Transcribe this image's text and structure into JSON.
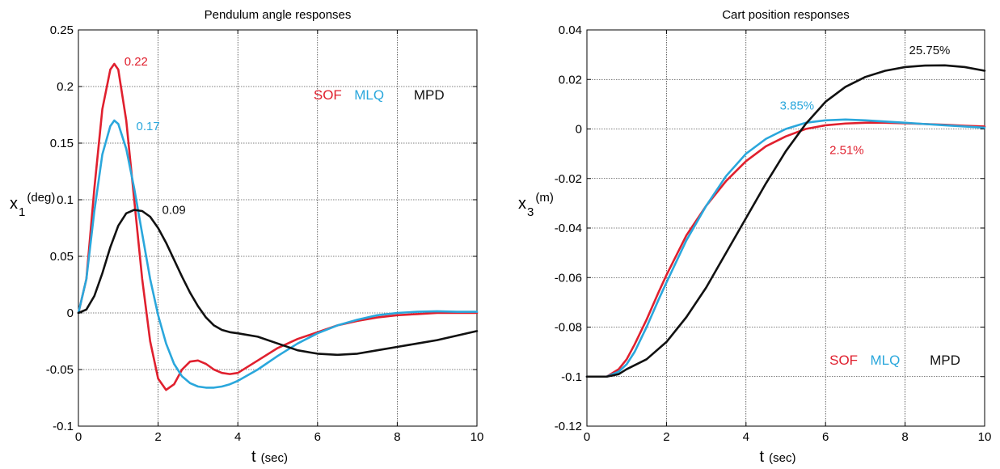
{
  "colors": {
    "SOF": "#e0202e",
    "MLQ": "#2aa7dc",
    "MPD": "#111111"
  },
  "chart_data": [
    {
      "type": "line",
      "title": "Pendulum angle responses",
      "xlabel": "t",
      "xlabel_unit": "(sec)",
      "ylabel": "x",
      "ylabel_sub": "1",
      "ylabel_unit": "(deg)",
      "xlim": [
        0,
        10
      ],
      "ylim": [
        -0.1,
        0.25
      ],
      "xticks": [
        0,
        2,
        4,
        6,
        8,
        10
      ],
      "yticks": [
        -0.1,
        -0.05,
        0,
        0.05,
        0.1,
        0.15,
        0.2,
        0.25
      ],
      "xtick_labels": [
        "0",
        "2",
        "4",
        "6",
        "8",
        "10"
      ],
      "ytick_labels": [
        "-0.1",
        "-0.05",
        "0",
        "0.05",
        "0.1",
        "0.15",
        "0.2",
        "0.25"
      ],
      "grid": true,
      "legend": [
        "SOF",
        "MLQ",
        "MPD"
      ],
      "legend_position": "top-right",
      "series": [
        {
          "name": "SOF",
          "color": "#e0202e",
          "x": [
            0,
            0.2,
            0.4,
            0.6,
            0.8,
            0.9,
            1.0,
            1.2,
            1.4,
            1.6,
            1.8,
            2.0,
            2.2,
            2.4,
            2.6,
            2.8,
            3.0,
            3.2,
            3.4,
            3.6,
            3.8,
            4.0,
            4.5,
            5.0,
            5.5,
            6.0,
            6.5,
            7.0,
            7.5,
            8.0,
            8.5,
            9.0,
            9.5,
            10.0
          ],
          "y": [
            0,
            0.03,
            0.11,
            0.18,
            0.215,
            0.22,
            0.215,
            0.17,
            0.1,
            0.03,
            -0.025,
            -0.058,
            -0.068,
            -0.063,
            -0.05,
            -0.043,
            -0.042,
            -0.045,
            -0.05,
            -0.053,
            -0.054,
            -0.053,
            -0.042,
            -0.031,
            -0.023,
            -0.017,
            -0.011,
            -0.007,
            -0.004,
            -0.002,
            -0.001,
            0.0,
            0.0,
            0.0
          ]
        },
        {
          "name": "MLQ",
          "color": "#2aa7dc",
          "x": [
            0,
            0.2,
            0.4,
            0.6,
            0.8,
            0.9,
            1.0,
            1.2,
            1.4,
            1.6,
            1.8,
            2.0,
            2.2,
            2.4,
            2.6,
            2.8,
            3.0,
            3.2,
            3.4,
            3.6,
            3.8,
            4.0,
            4.5,
            5.0,
            5.5,
            6.0,
            6.5,
            7.0,
            7.5,
            8.0,
            8.5,
            9.0,
            9.5,
            10.0
          ],
          "y": [
            0,
            0.03,
            0.09,
            0.14,
            0.165,
            0.17,
            0.167,
            0.145,
            0.11,
            0.07,
            0.03,
            -0.002,
            -0.027,
            -0.045,
            -0.056,
            -0.062,
            -0.065,
            -0.066,
            -0.066,
            -0.065,
            -0.063,
            -0.06,
            -0.05,
            -0.038,
            -0.027,
            -0.018,
            -0.011,
            -0.006,
            -0.002,
            0.0,
            0.001,
            0.0015,
            0.001,
            0.001
          ]
        },
        {
          "name": "MPD",
          "color": "#111111",
          "x": [
            0,
            0.2,
            0.4,
            0.6,
            0.8,
            1.0,
            1.2,
            1.4,
            1.6,
            1.8,
            2.0,
            2.2,
            2.4,
            2.6,
            2.8,
            3.0,
            3.2,
            3.4,
            3.6,
            3.8,
            4.0,
            4.5,
            5.0,
            5.5,
            6.0,
            6.5,
            7.0,
            7.5,
            8.0,
            8.5,
            9.0,
            9.5,
            10.0
          ],
          "y": [
            0,
            0.003,
            0.015,
            0.035,
            0.058,
            0.077,
            0.088,
            0.091,
            0.09,
            0.085,
            0.075,
            0.062,
            0.047,
            0.032,
            0.018,
            0.006,
            -0.004,
            -0.011,
            -0.015,
            -0.017,
            -0.018,
            -0.021,
            -0.027,
            -0.033,
            -0.036,
            -0.037,
            -0.036,
            -0.033,
            -0.03,
            -0.027,
            -0.024,
            -0.02,
            -0.016
          ]
        }
      ],
      "annotations": [
        {
          "text": "0.22",
          "x": 1.15,
          "y": 0.222,
          "series": "SOF"
        },
        {
          "text": "0.17",
          "x": 1.45,
          "y": 0.165,
          "series": "MLQ"
        },
        {
          "text": "0.09",
          "x": 2.1,
          "y": 0.091,
          "series": "MPD"
        }
      ]
    },
    {
      "type": "line",
      "title": "Cart position responses",
      "xlabel": "t",
      "xlabel_unit": "(sec)",
      "ylabel": "x",
      "ylabel_sub": "3",
      "ylabel_unit": "(m)",
      "xlim": [
        0,
        10
      ],
      "ylim": [
        -0.12,
        0.04
      ],
      "xticks": [
        0,
        2,
        4,
        6,
        8,
        10
      ],
      "yticks": [
        -0.12,
        -0.1,
        -0.08,
        -0.06,
        -0.04,
        -0.02,
        0,
        0.02,
        0.04
      ],
      "xtick_labels": [
        "0",
        "2",
        "4",
        "6",
        "8",
        "10"
      ],
      "ytick_labels": [
        "-0.12",
        "-0.1",
        "-0.08",
        "-0.06",
        "-0.04",
        "-0.02",
        "0",
        "0.02",
        "0.04"
      ],
      "grid": true,
      "legend": [
        "SOF",
        "MLQ",
        "MPD"
      ],
      "legend_position": "bottom-right",
      "series": [
        {
          "name": "SOF",
          "color": "#e0202e",
          "x": [
            0,
            0.5,
            0.8,
            1.0,
            1.2,
            1.5,
            1.8,
            2.0,
            2.5,
            3.0,
            3.5,
            4.0,
            4.5,
            5.0,
            5.5,
            6.0,
            6.5,
            7.0,
            7.5,
            8.0,
            8.5,
            9.0,
            9.5,
            10.0
          ],
          "y": [
            -0.1,
            -0.1,
            -0.097,
            -0.093,
            -0.087,
            -0.077,
            -0.066,
            -0.059,
            -0.043,
            -0.031,
            -0.021,
            -0.013,
            -0.007,
            -0.003,
            0.0,
            0.0015,
            0.0022,
            0.0025,
            0.0025,
            0.0023,
            0.002,
            0.0017,
            0.0013,
            0.001
          ]
        },
        {
          "name": "MLQ",
          "color": "#2aa7dc",
          "x": [
            0,
            0.5,
            0.8,
            1.0,
            1.2,
            1.5,
            1.8,
            2.0,
            2.5,
            3.0,
            3.5,
            4.0,
            4.5,
            5.0,
            5.5,
            6.0,
            6.5,
            7.0,
            7.5,
            8.0,
            8.5,
            9.0,
            9.5,
            10.0
          ],
          "y": [
            -0.1,
            -0.1,
            -0.098,
            -0.095,
            -0.09,
            -0.08,
            -0.069,
            -0.062,
            -0.045,
            -0.031,
            -0.019,
            -0.01,
            -0.004,
            0.0,
            0.0025,
            0.0035,
            0.0038,
            0.0035,
            0.003,
            0.0025,
            0.002,
            0.0015,
            0.001,
            0.0005
          ]
        },
        {
          "name": "MPD",
          "color": "#111111",
          "x": [
            0,
            0.5,
            0.8,
            1.0,
            1.5,
            2.0,
            2.5,
            3.0,
            3.5,
            4.0,
            4.5,
            5.0,
            5.5,
            6.0,
            6.5,
            7.0,
            7.5,
            8.0,
            8.5,
            9.0,
            9.5,
            10.0
          ],
          "y": [
            -0.1,
            -0.1,
            -0.099,
            -0.097,
            -0.093,
            -0.086,
            -0.076,
            -0.064,
            -0.05,
            -0.036,
            -0.022,
            -0.009,
            0.002,
            0.011,
            0.017,
            0.021,
            0.0235,
            0.025,
            0.0256,
            0.0257,
            0.025,
            0.0235
          ]
        }
      ],
      "annotations": [
        {
          "text": "25.75%",
          "x": 8.1,
          "y": 0.0318,
          "series": "MPD"
        },
        {
          "text": "3.85%",
          "x": 4.85,
          "y": 0.0095,
          "series": "MLQ"
        },
        {
          "text": "2.51%",
          "x": 6.1,
          "y": -0.0085,
          "series": "SOF"
        }
      ]
    }
  ]
}
